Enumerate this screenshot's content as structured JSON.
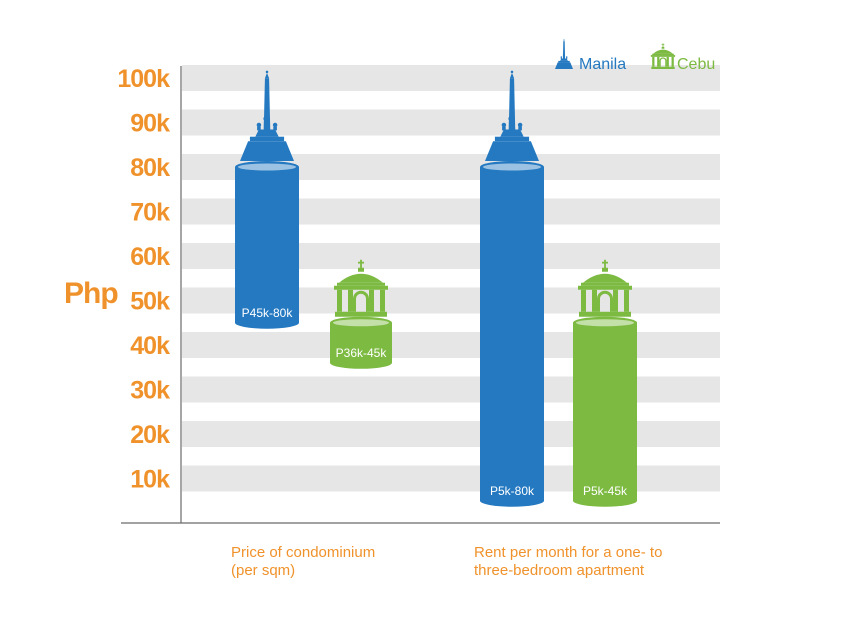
{
  "chart_data": {
    "type": "range-bar",
    "ylabel": "Php",
    "yticks": [
      "10k",
      "20k",
      "30k",
      "40k",
      "50k",
      "60k",
      "70k",
      "80k",
      "90k",
      "100k"
    ],
    "ylim": [
      0,
      100000
    ],
    "categories": [
      {
        "lines": [
          "Price of condominium",
          "(per sqm)"
        ]
      },
      {
        "lines": [
          "Rent per month for a one- to",
          "three-bedroom apartment"
        ]
      }
    ],
    "series": [
      {
        "name": "Manila",
        "color": "#2479C1",
        "icon": "obelisk-monument-icon",
        "ranges": [
          {
            "low": 45000,
            "high": 80000,
            "label": "P45k-80k"
          },
          {
            "low": 5000,
            "high": 80000,
            "label": "P5k-80k"
          }
        ]
      },
      {
        "name": "Cebu",
        "color": "#7DBA42",
        "icon": "pavilion-dome-icon",
        "ranges": [
          {
            "low": 36000,
            "high": 45000,
            "label": "P36k-45k"
          },
          {
            "low": 5000,
            "high": 45000,
            "label": "P5k-45k"
          }
        ]
      }
    ],
    "grid": true,
    "legend_position": "top-right"
  }
}
